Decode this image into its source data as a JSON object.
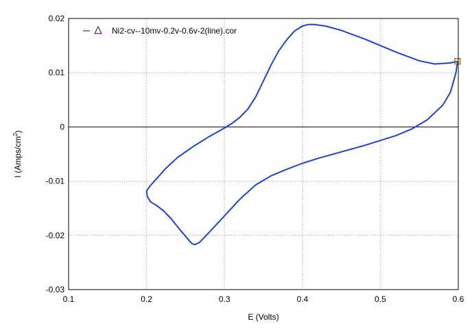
{
  "chart_data": {
    "type": "line",
    "xlabel": "E (Volts)",
    "ylabel_main": "I (Amps/cm",
    "ylabel_sup": "2",
    "ylabel_tail": ")",
    "xlim": [
      0.1,
      0.6
    ],
    "ylim": [
      -0.03,
      0.02
    ],
    "grid": true,
    "grid_style": "dotted",
    "zero_line": true,
    "legend_position": "top-left",
    "x_ticks": [
      "0.1",
      "0.2",
      "0.3",
      "0.4",
      "0.5",
      "0.6"
    ],
    "y_ticks": [
      "0.02",
      "0.01",
      "0",
      "-0.01",
      "-0.02",
      "-0.03"
    ],
    "colors": {
      "series": "#1f3fd6",
      "end_marker": "#c8551c",
      "legend_marker": "#6a1a7a",
      "grid": "#9a9a9a"
    },
    "series": [
      {
        "name": "Ni2-cv--10mv-0.2v-0.6v-2(line).cor",
        "x": [
          0.599,
          0.59,
          0.57,
          0.55,
          0.52,
          0.48,
          0.45,
          0.43,
          0.415,
          0.408,
          0.4,
          0.39,
          0.38,
          0.37,
          0.36,
          0.35,
          0.34,
          0.33,
          0.32,
          0.31,
          0.3,
          0.28,
          0.26,
          0.24,
          0.225,
          0.212,
          0.205,
          0.2,
          0.201,
          0.205,
          0.213,
          0.222,
          0.232,
          0.242,
          0.252,
          0.258,
          0.262,
          0.268,
          0.28,
          0.3,
          0.32,
          0.34,
          0.36,
          0.38,
          0.4,
          0.42,
          0.45,
          0.48,
          0.52,
          0.54,
          0.56,
          0.58,
          0.59,
          0.597,
          0.599
        ],
        "y": [
          0.0121,
          0.0118,
          0.0116,
          0.0122,
          0.0138,
          0.0162,
          0.0178,
          0.0186,
          0.0189,
          0.0189,
          0.0186,
          0.0177,
          0.0161,
          0.0141,
          0.0115,
          0.0085,
          0.0055,
          0.0033,
          0.0018,
          0.0007,
          -0.0002,
          -0.0018,
          -0.0036,
          -0.0056,
          -0.0076,
          -0.0097,
          -0.0108,
          -0.0118,
          -0.0128,
          -0.0138,
          -0.0145,
          -0.0155,
          -0.017,
          -0.0188,
          -0.0205,
          -0.0215,
          -0.0217,
          -0.0213,
          -0.0195,
          -0.0164,
          -0.0133,
          -0.0107,
          -0.009,
          -0.0078,
          -0.0067,
          -0.0058,
          -0.0046,
          -0.0034,
          -0.0016,
          -0.0004,
          0.0013,
          0.004,
          0.0064,
          0.01,
          0.0121
        ]
      }
    ]
  }
}
